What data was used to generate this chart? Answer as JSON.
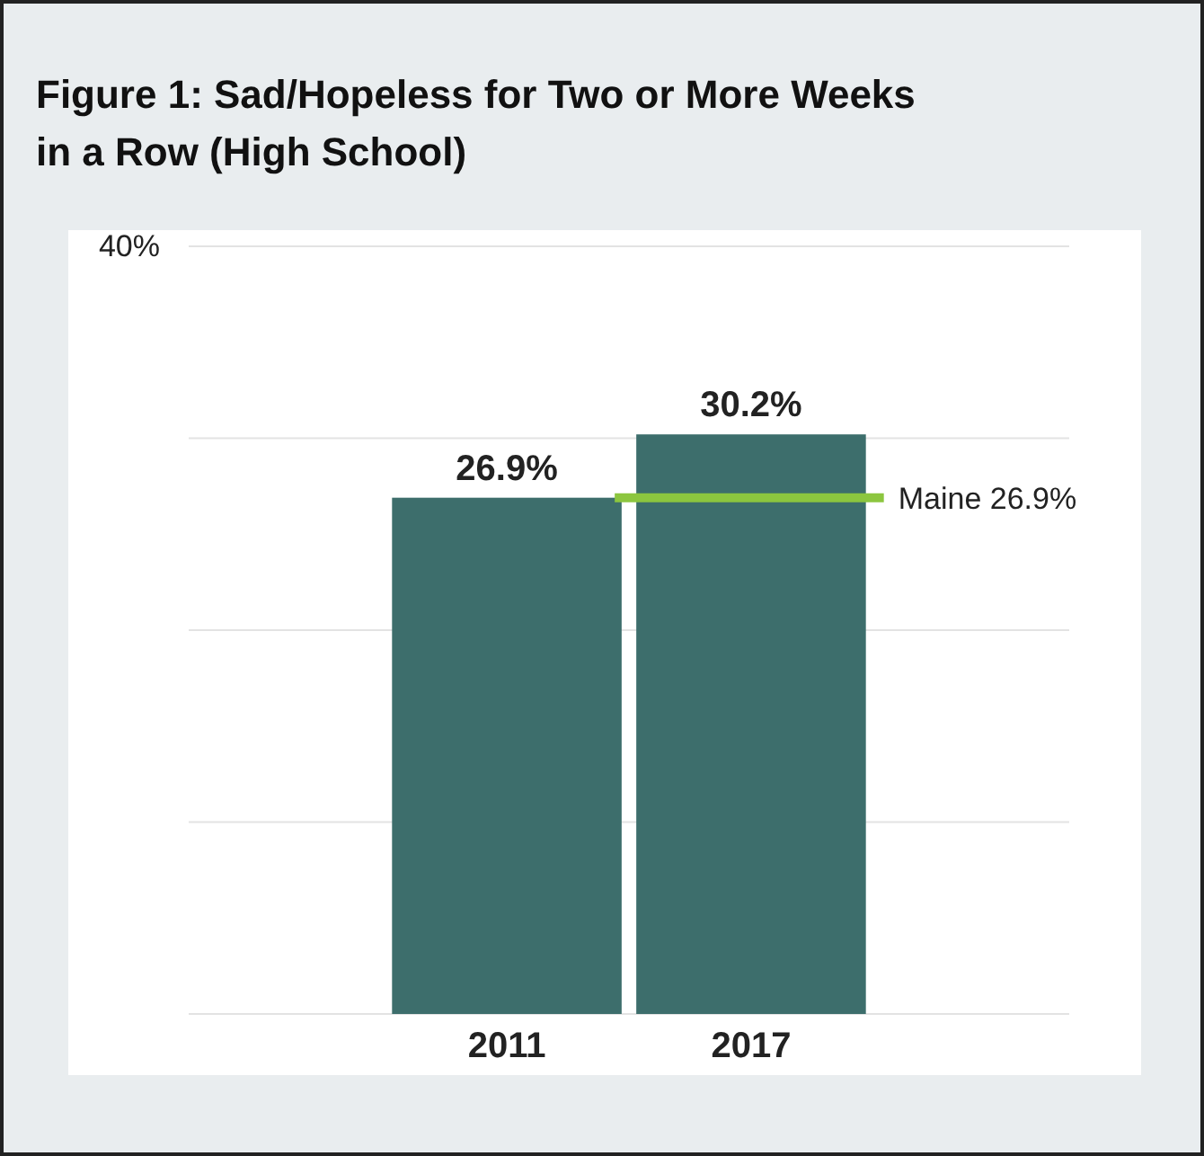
{
  "chart_data": {
    "type": "bar",
    "title": "Figure 1: Sad/Hopeless for Two or More Weeks in a Row (High School)",
    "categories": [
      "2011",
      "2017"
    ],
    "values": [
      26.9,
      30.2
    ],
    "color": "#3d6e6c",
    "value_labels": [
      "26.9%",
      "30.2%"
    ],
    "ylim": [
      0,
      40
    ],
    "yticks": [
      {
        "value": 0,
        "label": null
      },
      {
        "value": 10,
        "label": null
      },
      {
        "value": 20,
        "label": null
      },
      {
        "value": 30,
        "label": null
      },
      {
        "value": 40,
        "label": "40%"
      }
    ],
    "grid": "y",
    "ref_lines": [
      {
        "axis": "y",
        "value": 26.9,
        "label": "Maine 26.9%",
        "color": "#8cc63f"
      }
    ]
  }
}
